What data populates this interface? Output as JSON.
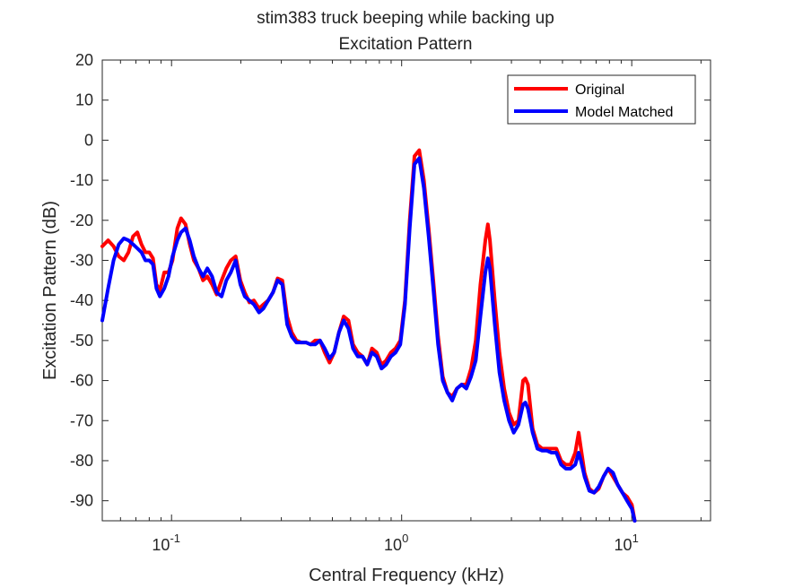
{
  "chart_data": {
    "type": "line",
    "title": "stim383 truck beeping while backing up",
    "subtitle": "Excitation Pattern",
    "xlabel": "Central Frequency (kHz)",
    "ylabel": "Excitation Pattern (dB)",
    "xscale": "log",
    "xlim": [
      0.05,
      22
    ],
    "ylim": [
      -95,
      20
    ],
    "yticks": [
      20,
      10,
      0,
      -10,
      -20,
      -30,
      -40,
      -50,
      -60,
      -70,
      -80,
      -90
    ],
    "xticks": [
      {
        "value": 0.1,
        "mantissa": "10",
        "exp": "-1"
      },
      {
        "value": 1,
        "mantissa": "10",
        "exp": "0"
      },
      {
        "value": 10,
        "mantissa": "10",
        "exp": "1"
      }
    ],
    "grid": false,
    "legend_position": "top-right",
    "series": [
      {
        "name": "Original",
        "color": "#ff0000",
        "points": [
          [
            0.05,
            -26.5
          ],
          [
            0.053,
            -25
          ],
          [
            0.056,
            -26.5
          ],
          [
            0.059,
            -29
          ],
          [
            0.062,
            -30
          ],
          [
            0.065,
            -28
          ],
          [
            0.068,
            -24
          ],
          [
            0.071,
            -23
          ],
          [
            0.074,
            -26
          ],
          [
            0.077,
            -28
          ],
          [
            0.08,
            -28
          ],
          [
            0.083,
            -29.5
          ],
          [
            0.086,
            -36
          ],
          [
            0.089,
            -37.5
          ],
          [
            0.093,
            -33
          ],
          [
            0.097,
            -33
          ],
          [
            0.101,
            -30
          ],
          [
            0.106,
            -22
          ],
          [
            0.11,
            -19.5
          ],
          [
            0.115,
            -21
          ],
          [
            0.12,
            -26
          ],
          [
            0.125,
            -30
          ],
          [
            0.131,
            -32
          ],
          [
            0.137,
            -35
          ],
          [
            0.143,
            -34
          ],
          [
            0.15,
            -36
          ],
          [
            0.157,
            -38.5
          ],
          [
            0.165,
            -35
          ],
          [
            0.173,
            -32
          ],
          [
            0.181,
            -30
          ],
          [
            0.19,
            -29
          ],
          [
            0.199,
            -35
          ],
          [
            0.208,
            -38
          ],
          [
            0.218,
            -40.5
          ],
          [
            0.228,
            -40
          ],
          [
            0.24,
            -42
          ],
          [
            0.251,
            -41
          ],
          [
            0.263,
            -40
          ],
          [
            0.276,
            -38
          ],
          [
            0.289,
            -34.5
          ],
          [
            0.303,
            -35
          ],
          [
            0.318,
            -44
          ],
          [
            0.333,
            -48
          ],
          [
            0.349,
            -50
          ],
          [
            0.366,
            -50.5
          ],
          [
            0.384,
            -50.5
          ],
          [
            0.402,
            -51
          ],
          [
            0.421,
            -50
          ],
          [
            0.442,
            -50
          ],
          [
            0.463,
            -53
          ],
          [
            0.486,
            -55.5
          ],
          [
            0.509,
            -53
          ],
          [
            0.534,
            -48
          ],
          [
            0.56,
            -44
          ],
          [
            0.587,
            -45
          ],
          [
            0.615,
            -51
          ],
          [
            0.645,
            -53
          ],
          [
            0.676,
            -54
          ],
          [
            0.709,
            -56
          ],
          [
            0.743,
            -52
          ],
          [
            0.779,
            -53
          ],
          [
            0.817,
            -56
          ],
          [
            0.856,
            -55
          ],
          [
            0.898,
            -53
          ],
          [
            0.941,
            -52
          ],
          [
            0.987,
            -50
          ],
          [
            1.034,
            -40
          ],
          [
            1.084,
            -20
          ],
          [
            1.137,
            -4
          ],
          [
            1.192,
            -2.5
          ],
          [
            1.249,
            -10
          ],
          [
            1.31,
            -22
          ],
          [
            1.373,
            -35
          ],
          [
            1.44,
            -49
          ],
          [
            1.509,
            -59
          ],
          [
            1.582,
            -63
          ],
          [
            1.659,
            -64
          ],
          [
            1.739,
            -62
          ],
          [
            1.823,
            -61
          ],
          [
            1.911,
            -61
          ],
          [
            2.003,
            -57
          ],
          [
            2.1,
            -50
          ],
          [
            2.2,
            -36
          ],
          [
            2.31,
            -25
          ],
          [
            2.37,
            -21
          ],
          [
            2.42,
            -25
          ],
          [
            2.54,
            -40
          ],
          [
            2.66,
            -53
          ],
          [
            2.79,
            -62
          ],
          [
            2.93,
            -68
          ],
          [
            3.07,
            -71
          ],
          [
            3.22,
            -70
          ],
          [
            3.37,
            -60
          ],
          [
            3.45,
            -59.5
          ],
          [
            3.54,
            -61
          ],
          [
            3.71,
            -72
          ],
          [
            3.89,
            -76
          ],
          [
            4.08,
            -77
          ],
          [
            4.28,
            -77
          ],
          [
            4.48,
            -77
          ],
          [
            4.7,
            -77
          ],
          [
            4.93,
            -80
          ],
          [
            5.17,
            -81
          ],
          [
            5.42,
            -81
          ],
          [
            5.68,
            -78
          ],
          [
            5.88,
            -73
          ],
          [
            6.02,
            -77
          ],
          [
            6.24,
            -83
          ],
          [
            6.54,
            -87
          ],
          [
            6.86,
            -88
          ],
          [
            7.19,
            -87
          ],
          [
            7.54,
            -84
          ],
          [
            7.9,
            -82
          ],
          [
            8.29,
            -84
          ],
          [
            8.69,
            -86
          ],
          [
            9.11,
            -88
          ],
          [
            9.55,
            -89
          ],
          [
            10.01,
            -91
          ],
          [
            10.3,
            -95
          ]
        ]
      },
      {
        "name": "Model Matched",
        "color": "#0000ff",
        "points": [
          [
            0.05,
            -45
          ],
          [
            0.053,
            -37
          ],
          [
            0.056,
            -30
          ],
          [
            0.059,
            -26
          ],
          [
            0.062,
            -24.5
          ],
          [
            0.065,
            -25
          ],
          [
            0.068,
            -26
          ],
          [
            0.071,
            -27
          ],
          [
            0.074,
            -28
          ],
          [
            0.077,
            -30
          ],
          [
            0.08,
            -30
          ],
          [
            0.083,
            -31
          ],
          [
            0.086,
            -37
          ],
          [
            0.089,
            -39
          ],
          [
            0.093,
            -37
          ],
          [
            0.097,
            -34
          ],
          [
            0.101,
            -29
          ],
          [
            0.106,
            -25
          ],
          [
            0.11,
            -23
          ],
          [
            0.115,
            -22
          ],
          [
            0.12,
            -25
          ],
          [
            0.125,
            -29
          ],
          [
            0.131,
            -32
          ],
          [
            0.137,
            -34
          ],
          [
            0.143,
            -32
          ],
          [
            0.15,
            -34
          ],
          [
            0.157,
            -38
          ],
          [
            0.165,
            -39
          ],
          [
            0.173,
            -35
          ],
          [
            0.181,
            -33
          ],
          [
            0.19,
            -30
          ],
          [
            0.199,
            -36
          ],
          [
            0.208,
            -39
          ],
          [
            0.218,
            -40
          ],
          [
            0.228,
            -41
          ],
          [
            0.24,
            -43
          ],
          [
            0.251,
            -42
          ],
          [
            0.263,
            -40
          ],
          [
            0.276,
            -38
          ],
          [
            0.289,
            -35
          ],
          [
            0.303,
            -36
          ],
          [
            0.318,
            -46
          ],
          [
            0.333,
            -49
          ],
          [
            0.349,
            -50.5
          ],
          [
            0.366,
            -50.5
          ],
          [
            0.384,
            -50.5
          ],
          [
            0.402,
            -51
          ],
          [
            0.421,
            -51
          ],
          [
            0.442,
            -50
          ],
          [
            0.463,
            -52
          ],
          [
            0.486,
            -54.5
          ],
          [
            0.509,
            -53
          ],
          [
            0.534,
            -48
          ],
          [
            0.56,
            -45
          ],
          [
            0.587,
            -47
          ],
          [
            0.615,
            -52
          ],
          [
            0.645,
            -54
          ],
          [
            0.676,
            -54
          ],
          [
            0.709,
            -56
          ],
          [
            0.743,
            -53
          ],
          [
            0.779,
            -54
          ],
          [
            0.817,
            -57
          ],
          [
            0.856,
            -56
          ],
          [
            0.898,
            -54
          ],
          [
            0.941,
            -53
          ],
          [
            0.987,
            -51
          ],
          [
            1.034,
            -41
          ],
          [
            1.084,
            -22
          ],
          [
            1.137,
            -6
          ],
          [
            1.192,
            -4.5
          ],
          [
            1.249,
            -12
          ],
          [
            1.31,
            -24
          ],
          [
            1.373,
            -37
          ],
          [
            1.44,
            -51
          ],
          [
            1.509,
            -60
          ],
          [
            1.582,
            -63
          ],
          [
            1.659,
            -65
          ],
          [
            1.739,
            -62
          ],
          [
            1.823,
            -61
          ],
          [
            1.911,
            -62
          ],
          [
            2.003,
            -59
          ],
          [
            2.1,
            -55
          ],
          [
            2.2,
            -44
          ],
          [
            2.31,
            -33
          ],
          [
            2.37,
            -29.5
          ],
          [
            2.42,
            -32
          ],
          [
            2.54,
            -46
          ],
          [
            2.66,
            -58
          ],
          [
            2.79,
            -65
          ],
          [
            2.93,
            -70
          ],
          [
            3.07,
            -73
          ],
          [
            3.22,
            -71
          ],
          [
            3.37,
            -66
          ],
          [
            3.45,
            -65.5
          ],
          [
            3.54,
            -67
          ],
          [
            3.71,
            -73
          ],
          [
            3.89,
            -77
          ],
          [
            4.08,
            -77.5
          ],
          [
            4.28,
            -77.5
          ],
          [
            4.48,
            -78
          ],
          [
            4.7,
            -78
          ],
          [
            4.93,
            -81
          ],
          [
            5.17,
            -82
          ],
          [
            5.42,
            -82
          ],
          [
            5.68,
            -81
          ],
          [
            5.88,
            -78
          ],
          [
            6.02,
            -80
          ],
          [
            6.24,
            -84
          ],
          [
            6.54,
            -87.5
          ],
          [
            6.86,
            -88
          ],
          [
            7.19,
            -86.5
          ],
          [
            7.54,
            -84
          ],
          [
            7.9,
            -82
          ],
          [
            8.29,
            -83
          ],
          [
            8.69,
            -86
          ],
          [
            9.11,
            -88
          ],
          [
            9.55,
            -90
          ],
          [
            10.01,
            -92
          ],
          [
            10.3,
            -95
          ]
        ]
      }
    ]
  }
}
